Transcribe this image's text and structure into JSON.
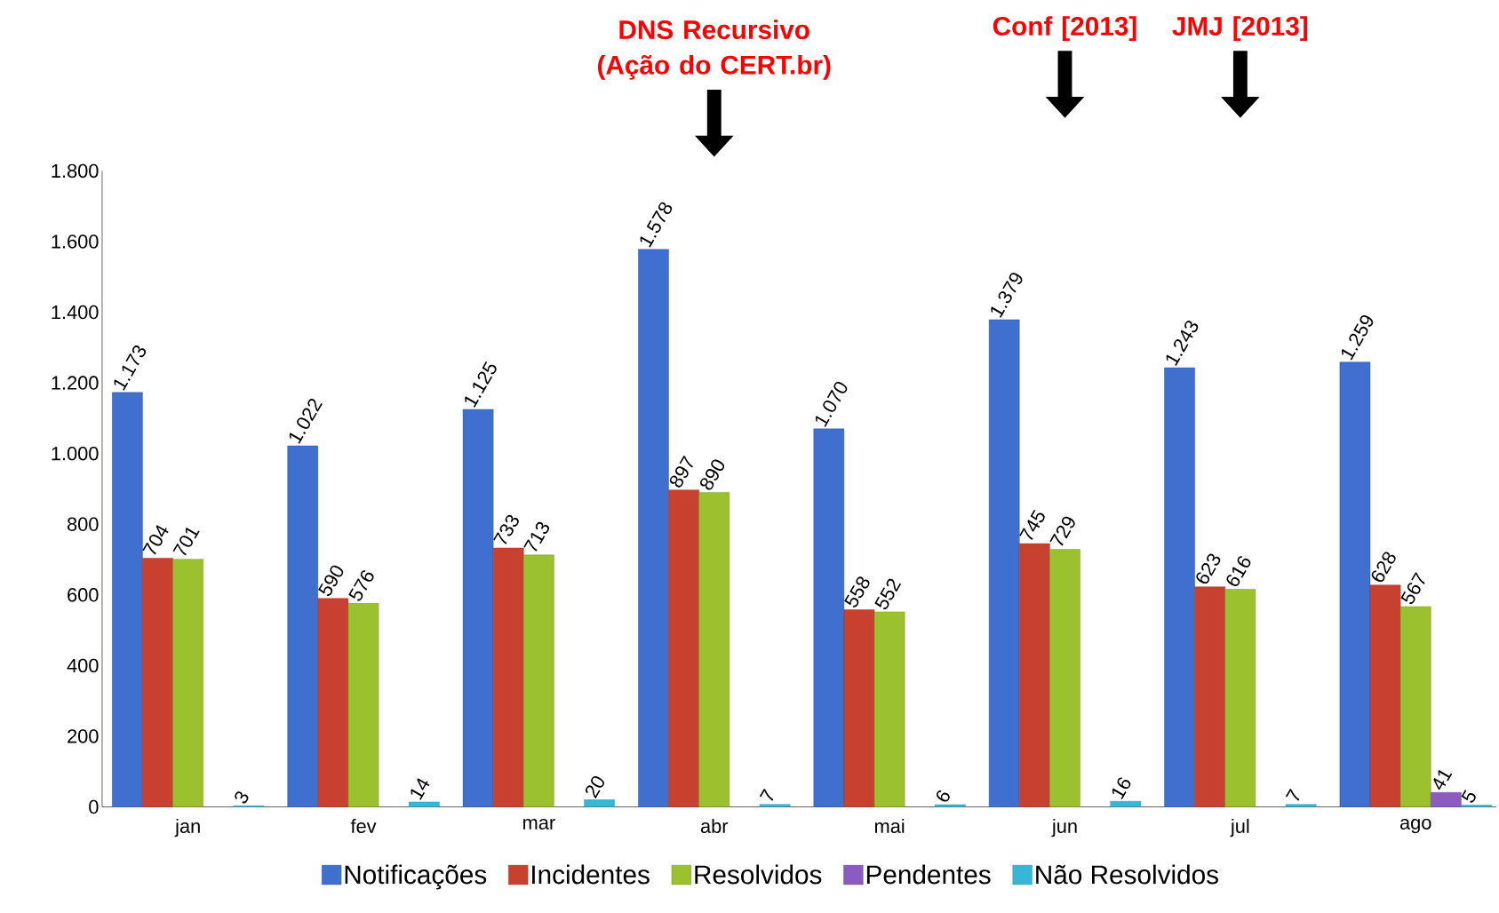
{
  "chart_data": {
    "type": "bar",
    "categories": [
      "jan",
      "fev",
      "mar",
      "abr",
      "mai",
      "jun",
      "jul",
      "ago"
    ],
    "series": [
      {
        "name": "Notificações",
        "color": "#3f6fcf",
        "values": [
          1173,
          1022,
          1125,
          1578,
          1070,
          1379,
          1243,
          1259
        ],
        "value_labels": [
          "1.173",
          "1.022",
          "1.125",
          "1.578",
          "1.070",
          "1.379",
          "1.243",
          "1.259"
        ]
      },
      {
        "name": "Incidentes",
        "color": "#c8412f",
        "values": [
          704,
          590,
          733,
          897,
          558,
          745,
          623,
          628
        ],
        "value_labels": [
          "704",
          "590",
          "733",
          "897",
          "558",
          "745",
          "623",
          "628"
        ]
      },
      {
        "name": "Resolvidos",
        "color": "#9bc22e",
        "values": [
          701,
          576,
          713,
          890,
          552,
          729,
          616,
          567
        ],
        "value_labels": [
          "701",
          "576",
          "713",
          "890",
          "552",
          "729",
          "616",
          "567"
        ]
      },
      {
        "name": "Pendentes",
        "color": "#8a5cc0",
        "values": [
          null,
          null,
          null,
          null,
          null,
          null,
          null,
          41
        ],
        "value_labels": [
          null,
          null,
          null,
          null,
          null,
          null,
          null,
          "41"
        ]
      },
      {
        "name": "Não Resolvidos",
        "color": "#38b6d6",
        "values": [
          3,
          14,
          20,
          7,
          6,
          16,
          7,
          5
        ],
        "value_labels": [
          "3",
          "14",
          "20",
          "7",
          "6",
          "16",
          "7",
          "5"
        ]
      }
    ],
    "ylim": [
      0,
      1800
    ],
    "yticks": [
      {
        "value": 0,
        "label": "0"
      },
      {
        "value": 200,
        "label": "200"
      },
      {
        "value": 400,
        "label": "400"
      },
      {
        "value": 600,
        "label": "600"
      },
      {
        "value": 800,
        "label": "800"
      },
      {
        "value": 1000,
        "label": "1.000"
      },
      {
        "value": 1200,
        "label": "1.200"
      },
      {
        "value": 1400,
        "label": "1.400"
      },
      {
        "value": 1600,
        "label": "1.600"
      },
      {
        "value": 1800,
        "label": "1.800"
      }
    ],
    "grid": false,
    "legend": "bottom",
    "annotations": [
      "DNS Recursivo (Ação do CERT.br)",
      "Conf [2013]",
      "JMJ [2013]"
    ]
  }
}
